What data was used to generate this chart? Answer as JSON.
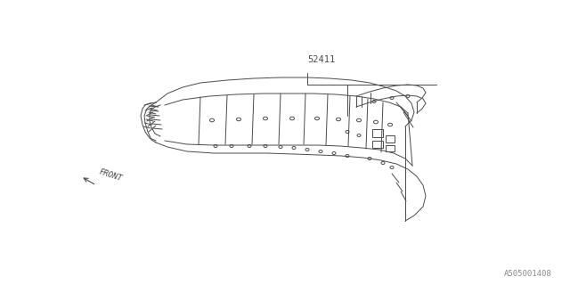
{
  "bg_color": "#ffffff",
  "line_color": "#4a4a4a",
  "text_color": "#4a4a4a",
  "part_number": "52411",
  "watermark": "A505001408",
  "front_label": "FRONT",
  "lw": 0.7
}
